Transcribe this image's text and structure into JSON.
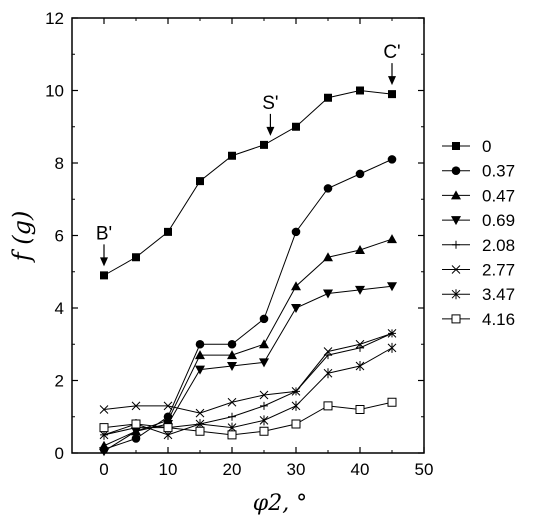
{
  "chart_data": {
    "type": "line",
    "ylabel": "f (g)",
    "xlabel": "φ2, °",
    "xlim": [
      -5,
      50
    ],
    "ylim": [
      0,
      12
    ],
    "x_ticks": [
      0,
      10,
      20,
      30,
      40,
      50
    ],
    "y_ticks": [
      0,
      2,
      4,
      6,
      8,
      10,
      12
    ],
    "grid": false,
    "legend_position": "right",
    "x": [
      0,
      5,
      10,
      15,
      20,
      25,
      30,
      35,
      40,
      45
    ],
    "series": [
      {
        "name": "0",
        "marker": "square-filled",
        "values": [
          4.9,
          5.4,
          6.1,
          7.5,
          8.2,
          8.5,
          9.0,
          9.8,
          10.0,
          9.9
        ]
      },
      {
        "name": "0.37",
        "marker": "circle-filled",
        "values": [
          0.1,
          0.4,
          1.0,
          3.0,
          3.0,
          3.7,
          6.1,
          7.3,
          7.7,
          8.1
        ]
      },
      {
        "name": "0.47",
        "marker": "triangle-up",
        "values": [
          0.2,
          0.6,
          0.9,
          2.7,
          2.7,
          3.0,
          4.6,
          5.4,
          5.6,
          5.9
        ]
      },
      {
        "name": "0.69",
        "marker": "triangle-down",
        "values": [
          0.05,
          0.6,
          0.8,
          2.3,
          2.4,
          2.5,
          4.0,
          4.4,
          4.5,
          4.6
        ]
      },
      {
        "name": "2.08",
        "marker": "plus",
        "values": [
          0.5,
          0.7,
          0.7,
          0.8,
          1.0,
          1.3,
          1.7,
          2.7,
          2.9,
          3.3
        ]
      },
      {
        "name": "2.77",
        "marker": "x",
        "values": [
          1.2,
          1.3,
          1.3,
          1.1,
          1.4,
          1.6,
          1.7,
          2.8,
          3.0,
          3.3
        ]
      },
      {
        "name": "3.47",
        "marker": "asterisk",
        "values": [
          0.5,
          0.8,
          0.5,
          0.8,
          0.7,
          0.9,
          1.3,
          2.2,
          2.4,
          2.9
        ]
      },
      {
        "name": "4.16",
        "marker": "square-open",
        "values": [
          0.7,
          0.8,
          0.7,
          0.6,
          0.5,
          0.6,
          0.8,
          1.3,
          1.2,
          1.4
        ]
      }
    ],
    "annotations": [
      {
        "text": "B'",
        "x": 0,
        "y": 4.9
      },
      {
        "text": "S'",
        "x": 26,
        "y": 8.5
      },
      {
        "text": "C'",
        "x": 45,
        "y": 9.9
      }
    ]
  }
}
